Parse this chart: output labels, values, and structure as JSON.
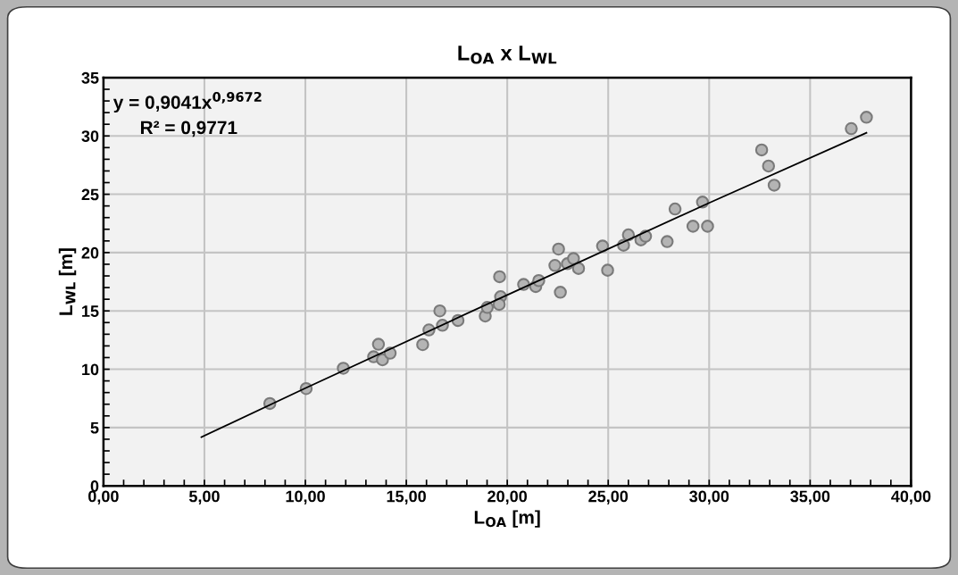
{
  "chart_data": {
    "type": "scatter",
    "title": "L$_{OA}$ x L$_{WL}$",
    "xlabel": "L$_{OA}$ [m]",
    "ylabel": "L$_{WL}$ [m]",
    "annotations": [
      "y = 0,9041x$^{0,9672}$",
      "R² = 0,9771"
    ],
    "xlim": [
      0,
      40
    ],
    "xticks": [
      {
        "value": 0,
        "label": "0,00"
      },
      {
        "value": 5,
        "label": "5,00"
      },
      {
        "value": 10,
        "label": "10,00"
      },
      {
        "value": 15,
        "label": "15,00"
      },
      {
        "value": 20,
        "label": "20,00"
      },
      {
        "value": 25,
        "label": "25,00"
      },
      {
        "value": 30,
        "label": "30,00"
      },
      {
        "value": 35,
        "label": "35,00"
      },
      {
        "value": 40,
        "label": "40,00"
      }
    ],
    "ylim": [
      0,
      35
    ],
    "yticks": [
      0,
      5,
      10,
      15,
      20,
      25,
      30,
      35
    ],
    "grid": true,
    "marker": "circle",
    "legend": false,
    "series": [
      {
        "color": "#b4b4b4",
        "x": [
          8.24,
          10.04,
          11.88,
          13.62,
          13.38,
          13.82,
          14.2,
          15.81,
          16.12,
          16.66,
          16.79,
          17.56,
          18.91,
          19.01,
          19.62,
          19.67,
          19.6,
          20.81,
          21.41,
          21.56,
          22.36,
          22.54,
          22.63,
          22.98,
          23.28,
          23.53,
          24.72,
          24.97,
          25.76,
          26.0,
          26.62,
          26.85,
          27.92,
          28.31,
          29.2,
          29.67,
          29.92,
          32.6,
          32.94,
          33.22,
          37.04,
          37.79
        ],
        "values": [
          7.06,
          8.34,
          10.08,
          12.14,
          11.07,
          10.81,
          11.38,
          12.11,
          13.37,
          15.0,
          13.77,
          14.18,
          14.56,
          15.3,
          17.93,
          16.22,
          15.56,
          17.27,
          17.09,
          17.6,
          18.9,
          20.3,
          16.6,
          19.05,
          19.49,
          18.64,
          20.56,
          18.49,
          20.63,
          21.52,
          21.09,
          21.4,
          20.94,
          23.74,
          22.26,
          24.33,
          22.26,
          28.8,
          27.42,
          25.78,
          30.63,
          31.6
        ]
      },
      {
        "type": "line",
        "color": "#000000",
        "marker": "none",
        "x": [
          4.85,
          10,
          20,
          30,
          37.79
        ],
        "values": [
          4.18,
          8.38,
          16.37,
          24.26,
          30.27
        ]
      }
    ]
  }
}
